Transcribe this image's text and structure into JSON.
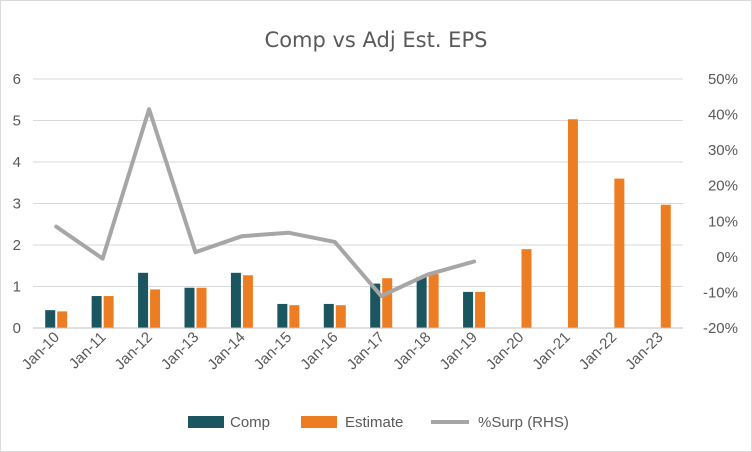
{
  "chart_data": {
    "type": "bar",
    "title": "Comp vs Adj Est. EPS",
    "categories": [
      "Jan-10",
      "Jan-11",
      "Jan-12",
      "Jan-13",
      "Jan-14",
      "Jan-15",
      "Jan-16",
      "Jan-17",
      "Jan-18",
      "Jan-19",
      "Jan-20",
      "Jan-21",
      "Jan-22",
      "Jan-23"
    ],
    "ylim": [
      0,
      6
    ],
    "yticks": [
      "0",
      "1",
      "2",
      "3",
      "4",
      "5",
      "6"
    ],
    "y2lim": [
      -20,
      50
    ],
    "y2ticks": [
      "-20%",
      "-10%",
      "0%",
      "10%",
      "20%",
      "30%",
      "40%",
      "50%"
    ],
    "series": [
      {
        "name": "Comp",
        "kind": "bar",
        "axis": "left",
        "color": "#1a5560",
        "values": [
          0.43,
          0.77,
          1.33,
          0.97,
          1.33,
          0.58,
          0.58,
          1.07,
          1.23,
          0.87,
          null,
          null,
          null,
          null
        ]
      },
      {
        "name": "Estimate",
        "kind": "bar",
        "axis": "left",
        "color": "#ed7d23",
        "values": [
          0.4,
          0.77,
          0.93,
          0.97,
          1.27,
          0.55,
          0.55,
          1.2,
          1.3,
          0.87,
          1.9,
          5.03,
          3.6,
          2.97
        ]
      },
      {
        "name": "%Surp (RHS)",
        "kind": "line",
        "axis": "right",
        "color": "#a6a6a6",
        "values": [
          8.5,
          -0.5,
          41.5,
          1.3,
          5.8,
          6.8,
          4.2,
          -11.0,
          -5.0,
          -1.3,
          null,
          null,
          null,
          null
        ]
      }
    ],
    "legend": "bottom",
    "grid": "horizontal"
  }
}
